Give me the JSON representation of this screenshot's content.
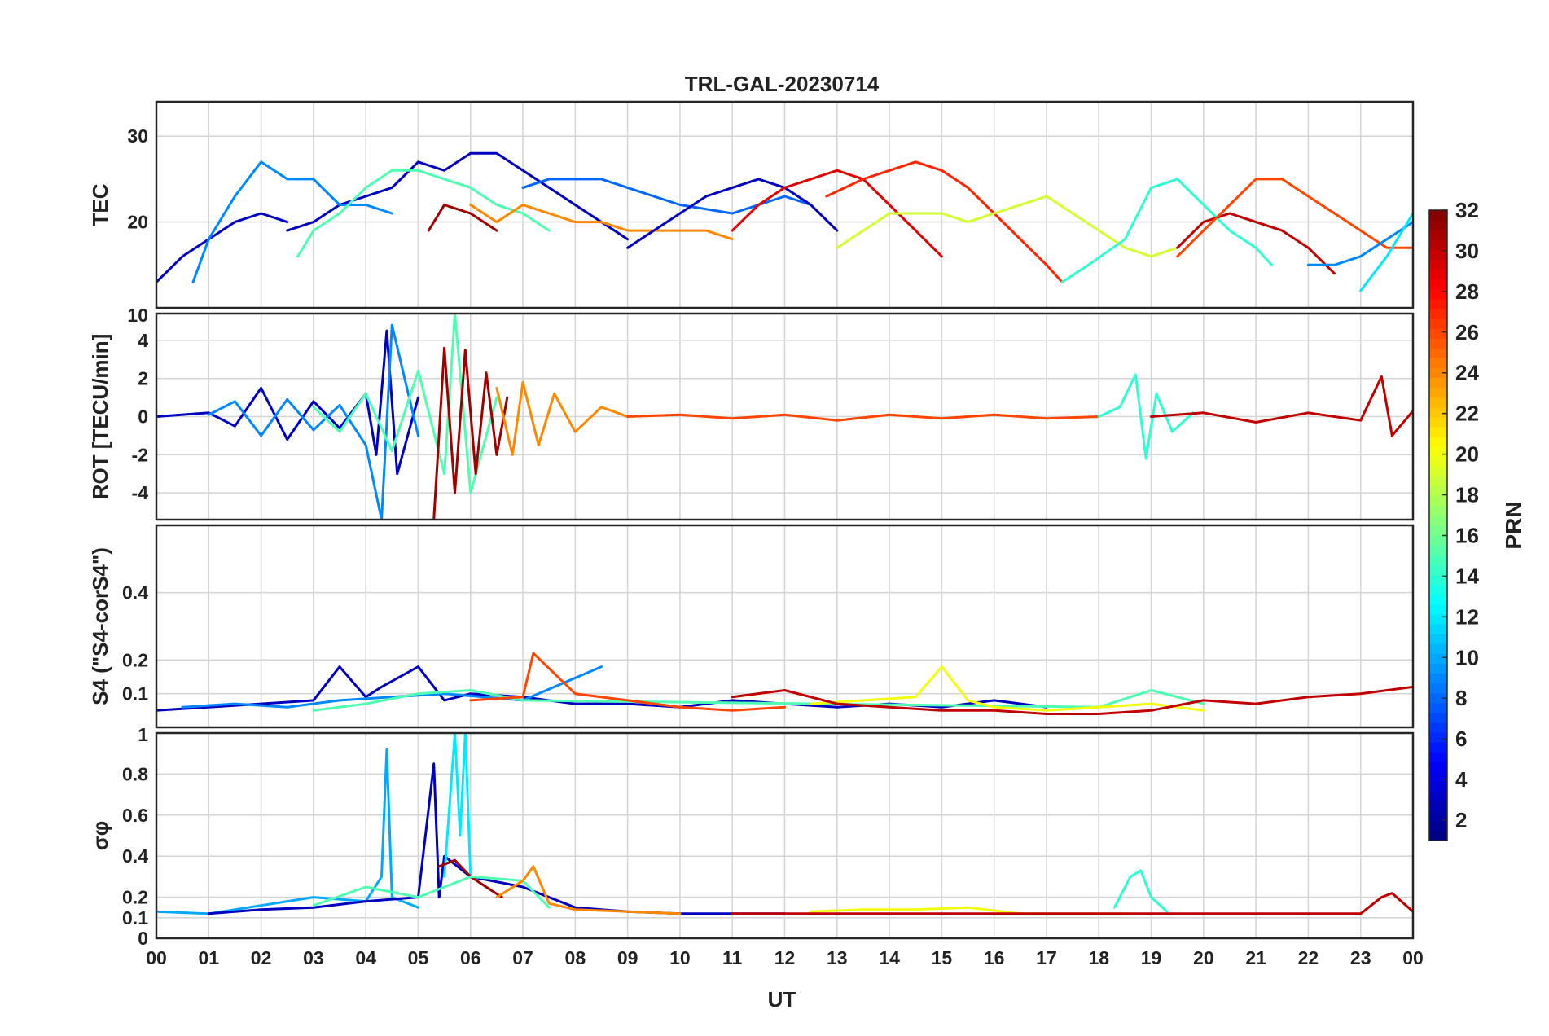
{
  "title": "TRL-GAL-20230714",
  "xlabel": "UT",
  "x_ticks": [
    "00",
    "01",
    "02",
    "03",
    "04",
    "05",
    "06",
    "07",
    "08",
    "09",
    "10",
    "11",
    "12",
    "13",
    "14",
    "15",
    "16",
    "17",
    "18",
    "19",
    "20",
    "21",
    "22",
    "23",
    "00"
  ],
  "colorbar": {
    "label": "PRN",
    "range": [
      1,
      32
    ],
    "ticks": [
      "2",
      "4",
      "6",
      "8",
      "10",
      "12",
      "14",
      "16",
      "18",
      "20",
      "22",
      "24",
      "26",
      "28",
      "30",
      "32"
    ]
  },
  "chart_data": [
    {
      "type": "line",
      "panel": "TEC",
      "ylabel": "TEC",
      "xlim": [
        0,
        24
      ],
      "ylim": [
        10,
        34
      ],
      "yticks": [
        20,
        30
      ],
      "series": [
        {
          "prn": 3,
          "x": [
            0,
            0.5,
            1,
            1.5,
            2,
            2.5
          ],
          "values": [
            13,
            16,
            18,
            20,
            21,
            20
          ]
        },
        {
          "prn": 3,
          "x": [
            2.5,
            3,
            3.5,
            4,
            4.5,
            5,
            5.5,
            6,
            6.5,
            7,
            7.5,
            8,
            8.5,
            9
          ],
          "values": [
            19,
            20,
            22,
            23,
            24,
            27,
            26,
            28,
            28,
            26,
            24,
            22,
            20,
            18
          ]
        },
        {
          "prn": 9,
          "x": [
            0.7,
            1,
            1.5,
            2,
            2.5,
            3,
            3.5,
            4,
            4.5
          ],
          "values": [
            13,
            18,
            23,
            27,
            25,
            25,
            22,
            22,
            21
          ]
        },
        {
          "prn": 15,
          "x": [
            2.7,
            3,
            3.5,
            4,
            4.5,
            5,
            5.5,
            6,
            6.5,
            7,
            7.5
          ],
          "values": [
            16,
            19,
            21,
            24,
            26,
            26,
            25,
            24,
            22,
            21,
            19
          ]
        },
        {
          "prn": 31,
          "x": [
            5.2,
            5.5,
            6,
            6.5
          ],
          "values": [
            19,
            22,
            21,
            19
          ]
        },
        {
          "prn": 24,
          "x": [
            6,
            6.5,
            7,
            7.5,
            8,
            8.5,
            9,
            9.5,
            10,
            10.5,
            11
          ],
          "values": [
            22,
            20,
            22,
            21,
            20,
            20,
            19,
            19,
            19,
            19,
            18
          ]
        },
        {
          "prn": 8,
          "x": [
            7,
            7.5,
            8,
            8.5,
            9,
            10,
            11,
            11.5,
            12,
            12.5
          ],
          "values": [
            24,
            25,
            25,
            25,
            24,
            22,
            21,
            22,
            23,
            22
          ]
        },
        {
          "prn": 3,
          "x": [
            9,
            9.5,
            10,
            10.5,
            11,
            11.5,
            12,
            12.5,
            13
          ],
          "values": [
            17,
            19,
            21,
            23,
            24,
            25,
            24,
            22,
            19
          ]
        },
        {
          "prn": 29,
          "x": [
            11,
            11.5,
            12,
            12.5,
            13,
            13.5,
            14,
            14.5,
            15
          ],
          "values": [
            19,
            22,
            24,
            25,
            26,
            25,
            22,
            19,
            16
          ]
        },
        {
          "prn": 27,
          "x": [
            12.8,
            13.5,
            14,
            14.5,
            15,
            15.5,
            16,
            16.5,
            17,
            17.3
          ],
          "values": [
            23,
            25,
            26,
            27,
            26,
            24,
            21,
            18,
            15,
            13
          ]
        },
        {
          "prn": 19,
          "x": [
            13,
            13.5,
            14,
            14.5,
            15,
            15.5,
            16,
            16.5,
            17,
            17.5,
            18,
            18.5,
            19,
            19.5
          ],
          "values": [
            17,
            19,
            21,
            21,
            21,
            20,
            21,
            22,
            23,
            21,
            19,
            17,
            16,
            17
          ]
        },
        {
          "prn": 14,
          "x": [
            17.3,
            17.8,
            18.5,
            19,
            19.5,
            20,
            20.5,
            21,
            21.3
          ],
          "values": [
            13,
            15,
            18,
            24,
            25,
            22,
            19,
            17,
            15
          ]
        },
        {
          "prn": 30,
          "x": [
            19.5,
            20,
            20.5,
            21,
            21.5,
            22,
            22.5
          ],
          "values": [
            17,
            20,
            21,
            20,
            19,
            17,
            14
          ]
        },
        {
          "prn": 26,
          "x": [
            19.5,
            20,
            20.5,
            21,
            21.5,
            22,
            22.5,
            23,
            23.5,
            24
          ],
          "values": [
            16,
            19,
            22,
            25,
            25,
            23,
            21,
            19,
            17,
            17
          ]
        },
        {
          "prn": 9,
          "x": [
            22,
            22.5,
            23,
            23.5,
            24
          ],
          "values": [
            15,
            15,
            16,
            18,
            20
          ]
        },
        {
          "prn": 12,
          "x": [
            23,
            23.5,
            23.8,
            24
          ],
          "values": [
            12,
            16,
            19,
            21
          ]
        }
      ]
    },
    {
      "type": "line",
      "panel": "ROT",
      "ylabel": "ROT [TECU/min]",
      "xlim": [
        0,
        24
      ],
      "ylim": [
        -5.4,
        5.4
      ],
      "yticks": [
        -4,
        -2,
        0,
        2,
        4
      ],
      "top_tick_label": "10",
      "series": [
        {
          "prn": 3,
          "x": [
            0,
            1,
            1.5,
            2,
            2.5,
            3,
            3.5,
            4,
            4.2,
            4.4,
            4.6,
            5
          ],
          "values": [
            0,
            0.2,
            -0.5,
            1.5,
            -1.2,
            0.8,
            -0.6,
            1.2,
            -2,
            4.5,
            -3,
            1
          ]
        },
        {
          "prn": 9,
          "x": [
            1,
            1.5,
            2,
            2.5,
            3,
            3.5,
            4,
            4.3,
            4.5,
            5
          ],
          "values": [
            0.1,
            0.8,
            -1,
            0.9,
            -0.7,
            0.6,
            -1.5,
            -5.4,
            4.8,
            -1
          ]
        },
        {
          "prn": 15,
          "x": [
            3,
            3.5,
            4,
            4.5,
            5,
            5.5,
            5.7,
            6,
            6.5
          ],
          "values": [
            0.5,
            -0.8,
            1.2,
            -1.8,
            2.4,
            -3,
            5.4,
            -4,
            1
          ]
        },
        {
          "prn": 31,
          "x": [
            5.3,
            5.5,
            5.7,
            5.9,
            6.1,
            6.3,
            6.5,
            6.7
          ],
          "values": [
            -5.4,
            3.6,
            -4,
            3.5,
            -3,
            2.3,
            -2,
            1
          ]
        },
        {
          "prn": 24,
          "x": [
            6.5,
            6.8,
            7,
            7.3,
            7.6,
            8,
            8.5,
            9
          ],
          "values": [
            1.5,
            -2,
            1.8,
            -1.5,
            1.2,
            -0.8,
            0.5,
            0
          ]
        },
        {
          "prn": 26,
          "x": [
            9,
            10,
            11,
            12,
            13,
            14,
            15,
            16,
            17,
            18
          ],
          "values": [
            0,
            0.1,
            -0.1,
            0.1,
            -0.2,
            0.1,
            -0.1,
            0.1,
            -0.1,
            0
          ]
        },
        {
          "prn": 14,
          "x": [
            18,
            18.4,
            18.7,
            18.9,
            19.1,
            19.4,
            19.8
          ],
          "values": [
            0,
            0.5,
            2.2,
            -2.2,
            1.2,
            -0.8,
            0.2
          ]
        },
        {
          "prn": 30,
          "x": [
            19,
            20,
            21,
            22,
            23,
            23.4,
            23.6,
            24
          ],
          "values": [
            0,
            0.2,
            -0.3,
            0.2,
            -0.2,
            2.1,
            -1,
            0.3
          ]
        }
      ]
    },
    {
      "type": "line",
      "panel": "S4",
      "ylabel": "S4 (\"S4-corS4\")",
      "xlim": [
        0,
        24
      ],
      "ylim": [
        0,
        0.6
      ],
      "yticks": [
        0.1,
        0.2,
        0.4
      ],
      "series": [
        {
          "prn": 3,
          "x": [
            0,
            1,
            2,
            3,
            3.5,
            4,
            4.3,
            5,
            5.5,
            6,
            7,
            8,
            9,
            10,
            11,
            12,
            13,
            14,
            15,
            16,
            17
          ],
          "values": [
            0.05,
            0.06,
            0.07,
            0.08,
            0.18,
            0.09,
            0.12,
            0.18,
            0.08,
            0.1,
            0.09,
            0.07,
            0.07,
            0.06,
            0.08,
            0.07,
            0.06,
            0.07,
            0.06,
            0.08,
            0.06
          ]
        },
        {
          "prn": 9,
          "x": [
            0.5,
            1.5,
            2.5,
            3.5,
            4.5,
            5.5,
            7,
            8.5
          ],
          "values": [
            0.06,
            0.07,
            0.06,
            0.08,
            0.09,
            0.1,
            0.08,
            0.18
          ]
        },
        {
          "prn": 15,
          "x": [
            3,
            4,
            5,
            6,
            7,
            18,
            19,
            20
          ],
          "values": [
            0.05,
            0.07,
            0.1,
            0.11,
            0.08,
            0.06,
            0.11,
            0.07
          ]
        },
        {
          "prn": 26,
          "x": [
            6,
            7,
            7.2,
            8,
            9,
            10,
            11,
            12
          ],
          "values": [
            0.08,
            0.09,
            0.22,
            0.1,
            0.08,
            0.06,
            0.05,
            0.06
          ]
        },
        {
          "prn": 20,
          "x": [
            12.5,
            13.5,
            14.5,
            15,
            15.5,
            16,
            17,
            18,
            19,
            20
          ],
          "values": [
            0.07,
            0.08,
            0.09,
            0.18,
            0.08,
            0.06,
            0.05,
            0.06,
            0.07,
            0.05
          ]
        },
        {
          "prn": 30,
          "x": [
            11,
            12,
            13,
            14,
            15,
            16,
            17,
            18,
            19,
            20,
            21,
            22,
            23,
            24
          ],
          "values": [
            0.09,
            0.11,
            0.07,
            0.06,
            0.05,
            0.05,
            0.04,
            0.04,
            0.05,
            0.08,
            0.07,
            0.09,
            0.1,
            0.12
          ]
        }
      ]
    },
    {
      "type": "line",
      "panel": "sigma_phi",
      "ylabel": "σφ",
      "xlim": [
        0,
        24
      ],
      "ylim": [
        0,
        1
      ],
      "yticks": [
        0,
        0.1,
        0.2,
        0.4,
        0.6,
        0.8
      ],
      "top_tick_label": "1",
      "series": [
        {
          "prn": 10,
          "x": [
            0,
            1,
            2,
            3,
            4,
            4.3,
            4.4,
            4.5,
            5
          ],
          "values": [
            0.13,
            0.12,
            0.16,
            0.2,
            0.18,
            0.3,
            0.92,
            0.2,
            0.15
          ]
        },
        {
          "prn": 3,
          "x": [
            1,
            2,
            3,
            4,
            5,
            5.3,
            5.4,
            5.5,
            6,
            7,
            8,
            9,
            10,
            11,
            12
          ],
          "values": [
            0.12,
            0.14,
            0.15,
            0.18,
            0.2,
            0.85,
            0.2,
            0.4,
            0.3,
            0.25,
            0.15,
            0.13,
            0.12,
            0.12,
            0.12
          ]
        },
        {
          "prn": 12,
          "x": [
            5.5,
            5.7,
            5.8,
            5.9,
            6
          ],
          "values": [
            0.3,
            1,
            0.5,
            1,
            0.3
          ]
        },
        {
          "prn": 31,
          "x": [
            5.4,
            5.7,
            6,
            6.3,
            6.6
          ],
          "values": [
            0.35,
            0.38,
            0.3,
            0.25,
            0.2
          ]
        },
        {
          "prn": 15,
          "x": [
            3,
            4,
            5,
            6,
            7,
            7.5
          ],
          "values": [
            0.16,
            0.25,
            0.2,
            0.3,
            0.28,
            0.15
          ]
        },
        {
          "prn": 24,
          "x": [
            6.5,
            7,
            7.2,
            7.5,
            8,
            9,
            10
          ],
          "values": [
            0.2,
            0.28,
            0.35,
            0.17,
            0.14,
            0.13,
            0.12
          ]
        },
        {
          "prn": 20,
          "x": [
            12.5,
            13.5,
            14.5,
            15.5,
            16.5,
            17.5,
            18.5
          ],
          "values": [
            0.13,
            0.14,
            0.14,
            0.15,
            0.12,
            0.12,
            0.12
          ]
        },
        {
          "prn": 14,
          "x": [
            18.3,
            18.6,
            18.8,
            19,
            19.3
          ],
          "values": [
            0.15,
            0.3,
            0.33,
            0.2,
            0.13
          ]
        },
        {
          "prn": 30,
          "x": [
            11,
            13,
            15,
            17,
            19,
            21,
            23,
            23.4,
            23.6,
            24
          ],
          "values": [
            0.12,
            0.12,
            0.12,
            0.12,
            0.12,
            0.12,
            0.12,
            0.2,
            0.22,
            0.13
          ]
        }
      ]
    }
  ]
}
